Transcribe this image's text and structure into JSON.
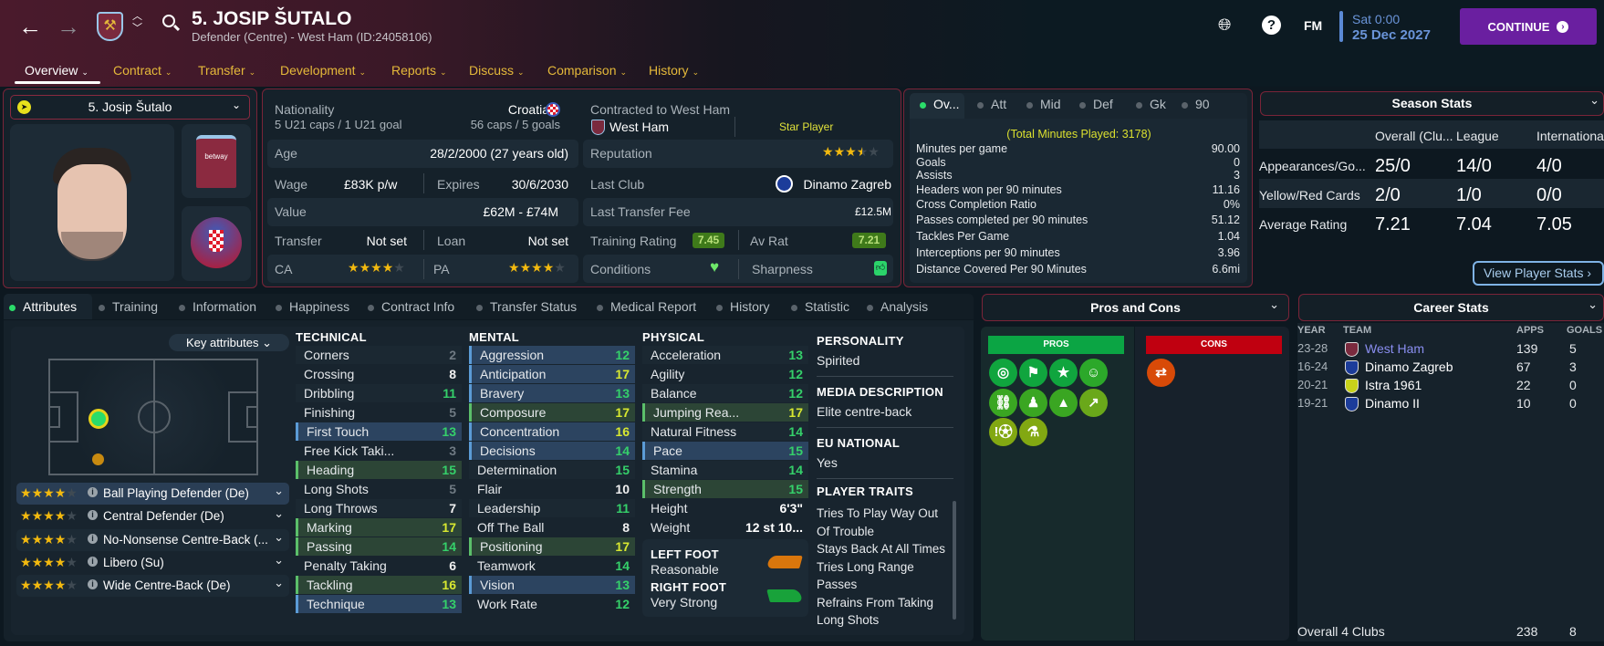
{
  "header": {
    "player_title": "5. JOSIP ŠUTALO",
    "subtitle": "Defender (Centre) - West Ham (ID:24058106)",
    "nav_tabs": [
      {
        "label": "Overview",
        "active": true
      },
      {
        "label": "Contract"
      },
      {
        "label": "Transfer"
      },
      {
        "label": "Development"
      },
      {
        "label": "Reports"
      },
      {
        "label": "Discuss"
      },
      {
        "label": "Comparison"
      },
      {
        "label": "History"
      }
    ],
    "fm_label": "FM",
    "day_time": "Sat 0:00",
    "date": "25 Dec 2027",
    "continue_label": "CONTINUE"
  },
  "profile": {
    "name_dropdown": "5. Josip Šutalo"
  },
  "info": {
    "nationality_label": "Nationality",
    "nationality": "Croatia",
    "u21": "5 U21 caps / 1 U21 goal",
    "caps": "56 caps / 5 goals",
    "contracted_label": "Contracted to West Ham",
    "club": "West Ham",
    "status": "Star Player",
    "age_label": "Age",
    "age": "28/2/2000 (27 years old)",
    "wage_label": "Wage",
    "wage": "£83K p/w",
    "expires_label": "Expires",
    "expires": "30/6/2030",
    "value_label": "Value",
    "value": "£62M - £74M",
    "transfer_label": "Transfer",
    "transfer": "Not set",
    "loan_label": "Loan",
    "loan": "Not set",
    "ca_label": "CA",
    "ca_stars": 4,
    "pa_label": "PA",
    "pa_stars": 4,
    "reputation_label": "Reputation",
    "reputation_stars": 3.5,
    "last_club_label": "Last Club",
    "last_club": "Dinamo Zagreb",
    "last_fee_label": "Last Transfer Fee",
    "last_fee": "£12.5M",
    "training_label": "Training Rating",
    "training": "7.45",
    "avrat_label": "Av Rat",
    "avrat": "7.21",
    "conditions_label": "Conditions",
    "sharpness_label": "Sharpness"
  },
  "quick_stats": {
    "tabs": [
      "Ov...",
      "Att",
      "Mid",
      "Def",
      "Gk",
      "90"
    ],
    "total": "(Total Minutes Played: 3178)",
    "rows": [
      {
        "label": "Minutes per game",
        "value": "90.00"
      },
      {
        "label": "Goals",
        "value": "0"
      },
      {
        "label": "Assists",
        "value": "3"
      },
      {
        "label": "Headers won per 90 minutes",
        "value": "11.16"
      },
      {
        "label": "Cross Completion Ratio",
        "value": "0%"
      },
      {
        "label": "Passes completed per 90 minutes",
        "value": "51.12"
      },
      {
        "label": "Tackles Per Game",
        "value": "1.04"
      },
      {
        "label": "Interceptions per 90 minutes",
        "value": "3.96"
      },
      {
        "label": "Distance Covered Per 90 Minutes",
        "value": "6.6mi"
      }
    ]
  },
  "season_stats": {
    "title": "Season Stats",
    "columns": [
      "Overall (Clu...",
      "League",
      "International"
    ],
    "rows": [
      {
        "label": "Appearances/Go...",
        "values": [
          "25/0",
          "14/0",
          "4/0"
        ]
      },
      {
        "label": "Yellow/Red Cards",
        "values": [
          "2/0",
          "1/0",
          "0/0"
        ]
      },
      {
        "label": "Average Rating",
        "values": [
          "7.21",
          "7.04",
          "7.05"
        ]
      }
    ],
    "button": "View Player Stats"
  },
  "lower_tabs": [
    "Attributes",
    "Training",
    "Information",
    "Happiness",
    "Contract Info",
    "Transfer Status",
    "Medical Report",
    "History",
    "Statistic",
    "Analysis"
  ],
  "attributes": {
    "key_button": "Key attributes",
    "roles": [
      {
        "stars": 4,
        "label": "Ball Playing Defender (De)"
      },
      {
        "stars": 4,
        "label": "Central Defender (De)"
      },
      {
        "stars": 4,
        "label": "No-Nonsense Centre-Back (..."
      },
      {
        "stars": 4,
        "label": "Libero (Su)"
      },
      {
        "stars": 4,
        "label": "Wide Centre-Back (De)"
      }
    ],
    "technical_title": "TECHNICAL",
    "technical": [
      {
        "name": "Corners",
        "value": 2,
        "key": ""
      },
      {
        "name": "Crossing",
        "value": 8,
        "key": ""
      },
      {
        "name": "Dribbling",
        "value": 11,
        "key": ""
      },
      {
        "name": "Finishing",
        "value": 5,
        "key": ""
      },
      {
        "name": "First Touch",
        "value": 13,
        "key": "blue"
      },
      {
        "name": "Free Kick Taki...",
        "value": 3,
        "key": ""
      },
      {
        "name": "Heading",
        "value": 15,
        "key": "green"
      },
      {
        "name": "Long Shots",
        "value": 5,
        "key": ""
      },
      {
        "name": "Long Throws",
        "value": 7,
        "key": ""
      },
      {
        "name": "Marking",
        "value": 17,
        "key": "green"
      },
      {
        "name": "Passing",
        "value": 14,
        "key": "green"
      },
      {
        "name": "Penalty Taking",
        "value": 6,
        "key": ""
      },
      {
        "name": "Tackling",
        "value": 16,
        "key": "green"
      },
      {
        "name": "Technique",
        "value": 13,
        "key": "blue"
      }
    ],
    "mental_title": "MENTAL",
    "mental": [
      {
        "name": "Aggression",
        "value": 12,
        "key": "blue"
      },
      {
        "name": "Anticipation",
        "value": 17,
        "key": "blue"
      },
      {
        "name": "Bravery",
        "value": 13,
        "key": "blue"
      },
      {
        "name": "Composure",
        "value": 17,
        "key": "green"
      },
      {
        "name": "Concentration",
        "value": 16,
        "key": "blue"
      },
      {
        "name": "Decisions",
        "value": 14,
        "key": "blue"
      },
      {
        "name": "Determination",
        "value": 15,
        "key": ""
      },
      {
        "name": "Flair",
        "value": 10,
        "key": ""
      },
      {
        "name": "Leadership",
        "value": 11,
        "key": ""
      },
      {
        "name": "Off The Ball",
        "value": 8,
        "key": ""
      },
      {
        "name": "Positioning",
        "value": 17,
        "key": "green"
      },
      {
        "name": "Teamwork",
        "value": 14,
        "key": ""
      },
      {
        "name": "Vision",
        "value": 13,
        "key": "blue"
      },
      {
        "name": "Work Rate",
        "value": 12,
        "key": ""
      }
    ],
    "physical_title": "PHYSICAL",
    "physical": [
      {
        "name": "Acceleration",
        "value": 13,
        "key": ""
      },
      {
        "name": "Agility",
        "value": 12,
        "key": ""
      },
      {
        "name": "Balance",
        "value": 12,
        "key": ""
      },
      {
        "name": "Jumping Rea...",
        "value": 17,
        "key": "green"
      },
      {
        "name": "Natural Fitness",
        "value": 14,
        "key": ""
      },
      {
        "name": "Pace",
        "value": 15,
        "key": "blue"
      },
      {
        "name": "Stamina",
        "value": 14,
        "key": ""
      },
      {
        "name": "Strength",
        "value": 15,
        "key": "green"
      }
    ],
    "height_label": "Height",
    "height": "6'3\"",
    "weight_label": "Weight",
    "weight": "12 st 10...",
    "left_foot_label": "LEFT FOOT",
    "left_foot": "Reasonable",
    "right_foot_label": "RIGHT FOOT",
    "right_foot": "Very Strong"
  },
  "details": {
    "personality_label": "PERSONALITY",
    "personality": "Spirited",
    "media_label": "MEDIA DESCRIPTION",
    "media": "Elite centre-back",
    "eu_label": "EU NATIONAL",
    "eu": "Yes",
    "traits_label": "PLAYER TRAITS",
    "traits": [
      "Tries To Play Way Out",
      "Of Trouble",
      "Stays Back At All Times",
      "Tries Long Range",
      "Passes",
      "Refrains From Taking",
      "Long Shots"
    ]
  },
  "pros_cons": {
    "title": "Pros and Cons",
    "pros_label": "PROS",
    "cons_label": "CONS",
    "pros_icons": [
      "target-icon",
      "corner-flag-icon",
      "star-icon",
      "head-icon",
      "chain-icon",
      "person-icon",
      "cone-icon",
      "trend-up-icon",
      "alert-ball-icon",
      "flask-icon"
    ],
    "cons_icons": [
      "swap-arrows-icon"
    ]
  },
  "career": {
    "title": "Career Stats",
    "columns": [
      "YEAR",
      "TEAM",
      "APPS",
      "GOALS"
    ],
    "rows": [
      {
        "year": "23-28",
        "team": "West Ham",
        "apps": "139",
        "goals": "5"
      },
      {
        "year": "16-24",
        "team": "Dinamo Zagreb",
        "apps": "67",
        "goals": "3"
      },
      {
        "year": "20-21",
        "team": "Istra 1961",
        "apps": "22",
        "goals": "0"
      },
      {
        "year": "19-21",
        "team": "Dinamo II",
        "apps": "10",
        "goals": "0"
      }
    ],
    "total_label": "Overall 4 Clubs",
    "total_apps": "238",
    "total_goals": "8"
  },
  "colors": {
    "accent_purple": "#6a1fa0",
    "panel_border": "#7a2438",
    "nav_gold": "#e5b93a",
    "pros_green": "#0ba544",
    "cons_red": "#c00010"
  }
}
